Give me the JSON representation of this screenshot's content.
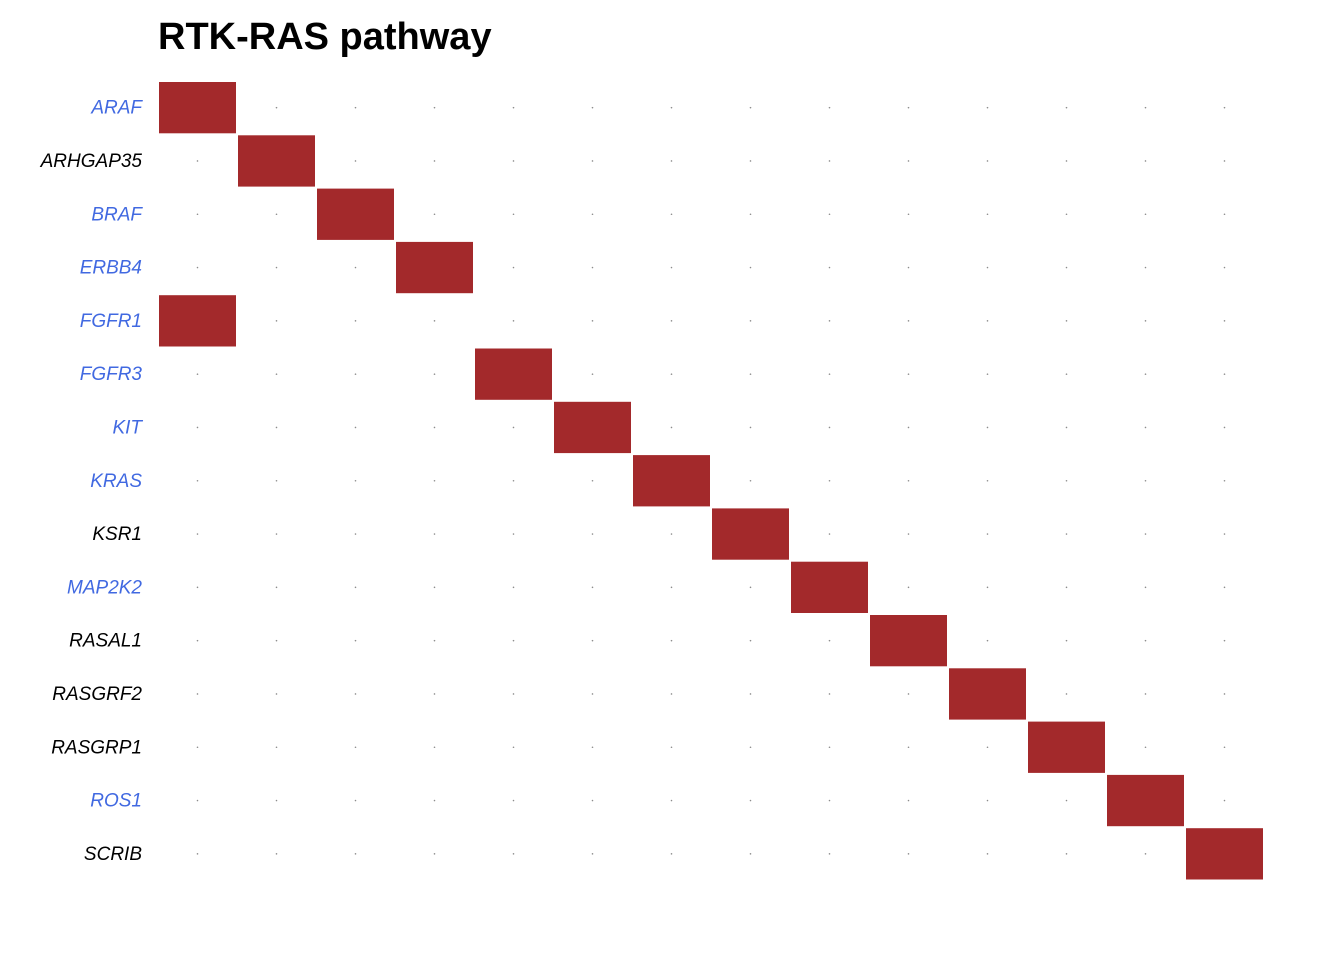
{
  "chart_data": {
    "type": "heatmap",
    "title": "RTK-RAS pathway",
    "rows": [
      "ARAF",
      "ARHGAP35",
      "BRAF",
      "ERBB4",
      "FGFR1",
      "FGFR3",
      "KIT",
      "KRAS",
      "KSR1",
      "MAP2K2",
      "RASAL1",
      "RASGRF2",
      "RASGRP1",
      "ROS1",
      "SCRIB"
    ],
    "row_label_colors": [
      "#4169E1",
      "#000000",
      "#4169E1",
      "#4169E1",
      "#4169E1",
      "#4169E1",
      "#4169E1",
      "#4169E1",
      "#000000",
      "#4169E1",
      "#000000",
      "#000000",
      "#000000",
      "#4169E1",
      "#000000"
    ],
    "n_columns": 14,
    "altered_cells": [
      {
        "row": "ARAF",
        "col": 1
      },
      {
        "row": "ARHGAP35",
        "col": 2
      },
      {
        "row": "BRAF",
        "col": 3
      },
      {
        "row": "ERBB4",
        "col": 4
      },
      {
        "row": "FGFR1",
        "col": 1
      },
      {
        "row": "FGFR3",
        "col": 5
      },
      {
        "row": "KIT",
        "col": 6
      },
      {
        "row": "KRAS",
        "col": 7
      },
      {
        "row": "KSR1",
        "col": 8
      },
      {
        "row": "MAP2K2",
        "col": 9
      },
      {
        "row": "RASAL1",
        "col": 10
      },
      {
        "row": "RASGRF2",
        "col": 11
      },
      {
        "row": "RASGRP1",
        "col": 12
      },
      {
        "row": "ROS1",
        "col": 13
      },
      {
        "row": "SCRIB",
        "col": 14
      }
    ],
    "cell_color": "#A3292B",
    "empty_marker_color": "#8C8C8C",
    "grid": false
  }
}
